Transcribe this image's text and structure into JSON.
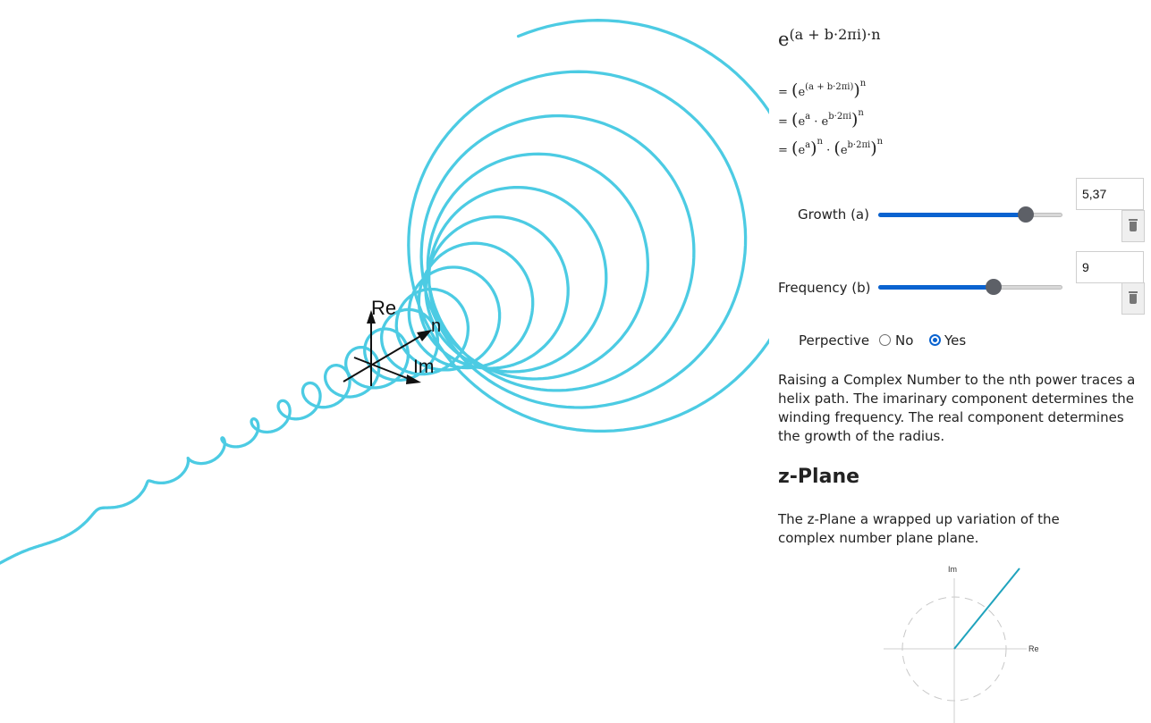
{
  "formula": {
    "base": "e",
    "exponent": "(a + b·2πi)·n",
    "line1": {
      "prefix": "= ",
      "open": "(",
      "base": "e",
      "sup": "(a + b·2πi)",
      "close": ")",
      "pow": "n"
    },
    "line2": {
      "prefix": "= ",
      "open": "(",
      "b1": "e",
      "s1": "a",
      "dot": " · ",
      "b2": "e",
      "s2": "b·2πi",
      "close": ")",
      "pow": "n"
    },
    "line3": {
      "prefix": "= ",
      "open1": "(",
      "b1": "e",
      "s1": "a",
      "close1": ")",
      "p1": "n",
      "dot": " · ",
      "open2": "(",
      "b2": "e",
      "s2": "b·2πi",
      "close2": ")",
      "p2": "n"
    }
  },
  "controls": {
    "growth": {
      "label": "Growth (a)",
      "value": "5,37",
      "fraction": 0.8
    },
    "frequency": {
      "label": "Frequency (b)",
      "value": "9",
      "fraction": 0.625
    }
  },
  "perspective": {
    "label": "Perpective",
    "options": [
      "No",
      "Yes"
    ],
    "selected": "Yes"
  },
  "description": "Raising a Complex Number to the nth power traces a helix path. The imarinary component determines the winding frequency. The real component determines the growth of the radius.",
  "zplane": {
    "heading": "z-Plane",
    "text": "The z-Plane a wrapped up variation of the complex number plane plane.",
    "re_label": "Re",
    "im_label": "Im"
  },
  "axes": {
    "re": "Re",
    "im": "Im",
    "n": "n"
  },
  "colors": {
    "helix": "#4ccbe3",
    "accent": "#0a63d0",
    "zline": "#1fa3bd"
  }
}
